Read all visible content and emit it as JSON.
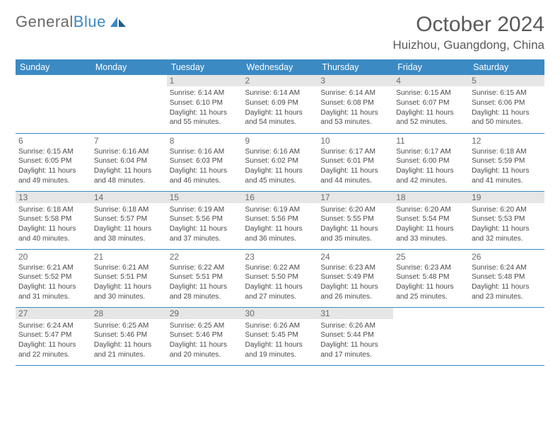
{
  "logo": {
    "word1": "General",
    "word2": "Blue"
  },
  "title": "October 2024",
  "location": "Huizhou, Guangdong, China",
  "colors": {
    "primary": "#3b8ac4",
    "bg": "#ffffff",
    "text": "#4a4a4a",
    "headerText": "#ffffff",
    "shade": "#e6e6e6",
    "rule": "#3b8ac4"
  },
  "dayHeaders": [
    "Sunday",
    "Monday",
    "Tuesday",
    "Wednesday",
    "Thursday",
    "Friday",
    "Saturday"
  ],
  "weeks": [
    [
      null,
      null,
      {
        "n": "1",
        "sr": "6:14 AM",
        "ss": "6:10 PM",
        "dl": "11 hours and 55 minutes."
      },
      {
        "n": "2",
        "sr": "6:14 AM",
        "ss": "6:09 PM",
        "dl": "11 hours and 54 minutes."
      },
      {
        "n": "3",
        "sr": "6:14 AM",
        "ss": "6:08 PM",
        "dl": "11 hours and 53 minutes."
      },
      {
        "n": "4",
        "sr": "6:15 AM",
        "ss": "6:07 PM",
        "dl": "11 hours and 52 minutes."
      },
      {
        "n": "5",
        "sr": "6:15 AM",
        "ss": "6:06 PM",
        "dl": "11 hours and 50 minutes."
      }
    ],
    [
      {
        "n": "6",
        "sr": "6:15 AM",
        "ss": "6:05 PM",
        "dl": "11 hours and 49 minutes."
      },
      {
        "n": "7",
        "sr": "6:16 AM",
        "ss": "6:04 PM",
        "dl": "11 hours and 48 minutes."
      },
      {
        "n": "8",
        "sr": "6:16 AM",
        "ss": "6:03 PM",
        "dl": "11 hours and 46 minutes."
      },
      {
        "n": "9",
        "sr": "6:16 AM",
        "ss": "6:02 PM",
        "dl": "11 hours and 45 minutes."
      },
      {
        "n": "10",
        "sr": "6:17 AM",
        "ss": "6:01 PM",
        "dl": "11 hours and 44 minutes."
      },
      {
        "n": "11",
        "sr": "6:17 AM",
        "ss": "6:00 PM",
        "dl": "11 hours and 42 minutes."
      },
      {
        "n": "12",
        "sr": "6:18 AM",
        "ss": "5:59 PM",
        "dl": "11 hours and 41 minutes."
      }
    ],
    [
      {
        "n": "13",
        "sr": "6:18 AM",
        "ss": "5:58 PM",
        "dl": "11 hours and 40 minutes."
      },
      {
        "n": "14",
        "sr": "6:18 AM",
        "ss": "5:57 PM",
        "dl": "11 hours and 38 minutes."
      },
      {
        "n": "15",
        "sr": "6:19 AM",
        "ss": "5:56 PM",
        "dl": "11 hours and 37 minutes."
      },
      {
        "n": "16",
        "sr": "6:19 AM",
        "ss": "5:56 PM",
        "dl": "11 hours and 36 minutes."
      },
      {
        "n": "17",
        "sr": "6:20 AM",
        "ss": "5:55 PM",
        "dl": "11 hours and 35 minutes."
      },
      {
        "n": "18",
        "sr": "6:20 AM",
        "ss": "5:54 PM",
        "dl": "11 hours and 33 minutes."
      },
      {
        "n": "19",
        "sr": "6:20 AM",
        "ss": "5:53 PM",
        "dl": "11 hours and 32 minutes."
      }
    ],
    [
      {
        "n": "20",
        "sr": "6:21 AM",
        "ss": "5:52 PM",
        "dl": "11 hours and 31 minutes."
      },
      {
        "n": "21",
        "sr": "6:21 AM",
        "ss": "5:51 PM",
        "dl": "11 hours and 30 minutes."
      },
      {
        "n": "22",
        "sr": "6:22 AM",
        "ss": "5:51 PM",
        "dl": "11 hours and 28 minutes."
      },
      {
        "n": "23",
        "sr": "6:22 AM",
        "ss": "5:50 PM",
        "dl": "11 hours and 27 minutes."
      },
      {
        "n": "24",
        "sr": "6:23 AM",
        "ss": "5:49 PM",
        "dl": "11 hours and 26 minutes."
      },
      {
        "n": "25",
        "sr": "6:23 AM",
        "ss": "5:48 PM",
        "dl": "11 hours and 25 minutes."
      },
      {
        "n": "26",
        "sr": "6:24 AM",
        "ss": "5:48 PM",
        "dl": "11 hours and 23 minutes."
      }
    ],
    [
      {
        "n": "27",
        "sr": "6:24 AM",
        "ss": "5:47 PM",
        "dl": "11 hours and 22 minutes."
      },
      {
        "n": "28",
        "sr": "6:25 AM",
        "ss": "5:46 PM",
        "dl": "11 hours and 21 minutes."
      },
      {
        "n": "29",
        "sr": "6:25 AM",
        "ss": "5:46 PM",
        "dl": "11 hours and 20 minutes."
      },
      {
        "n": "30",
        "sr": "6:26 AM",
        "ss": "5:45 PM",
        "dl": "11 hours and 19 minutes."
      },
      {
        "n": "31",
        "sr": "6:26 AM",
        "ss": "5:44 PM",
        "dl": "11 hours and 17 minutes."
      },
      null,
      null
    ]
  ],
  "labels": {
    "sunrise": "Sunrise:",
    "sunset": "Sunset:",
    "daylight": "Daylight:"
  },
  "style": {
    "daynum_fontsize": 12,
    "cell_fontsize": 10.2,
    "header_fontsize": 12.5,
    "title_fontsize": 30,
    "location_fontsize": 17,
    "shaded_rows": [
      0,
      2,
      4
    ]
  }
}
